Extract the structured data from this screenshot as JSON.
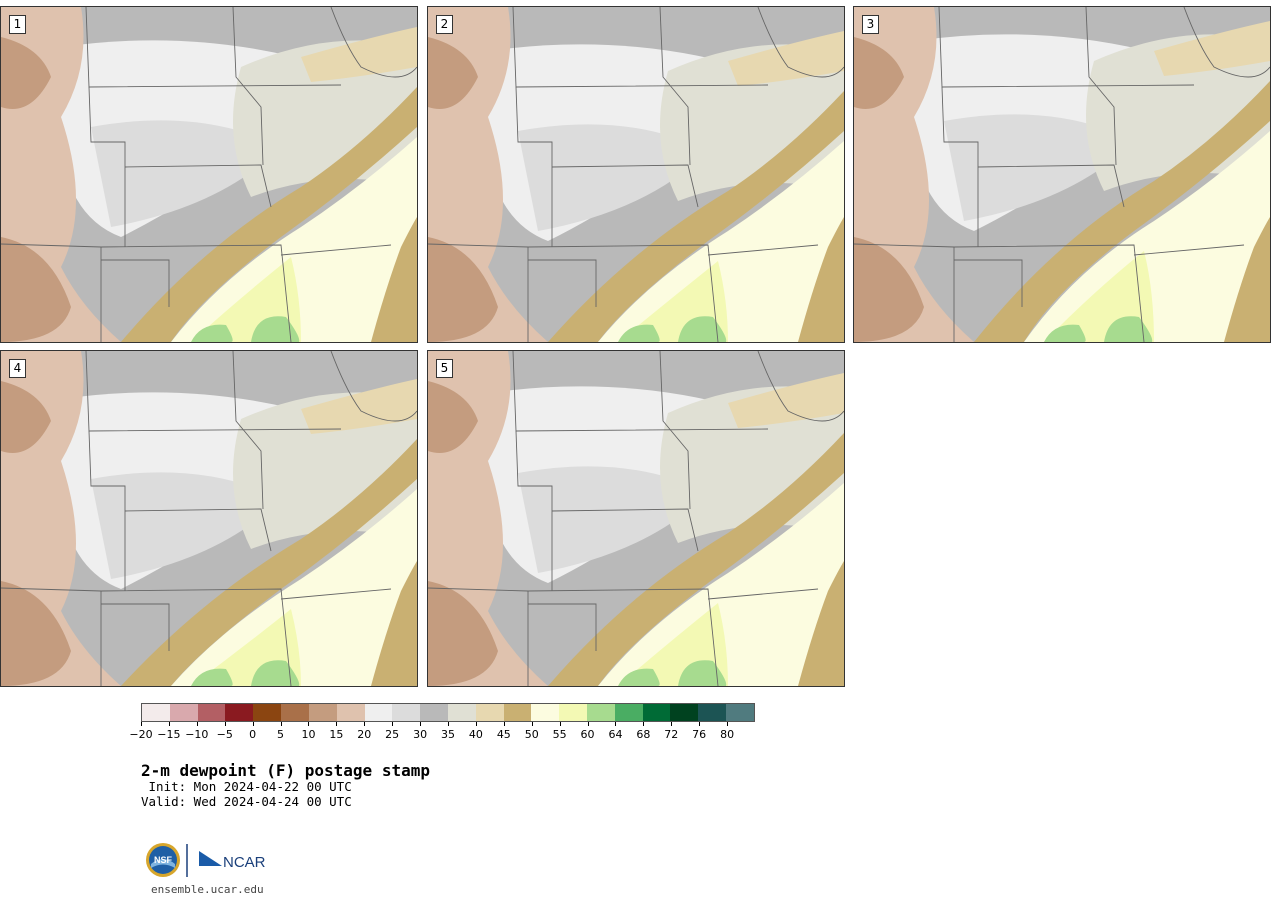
{
  "panels": [
    {
      "label": "1"
    },
    {
      "label": "2"
    },
    {
      "label": "3"
    },
    {
      "label": "4"
    },
    {
      "label": "5"
    }
  ],
  "colorbar": {
    "colors": [
      "#f3ebeb",
      "#d9a9ad",
      "#b35f64",
      "#8a1a20",
      "#8b4511",
      "#a97049",
      "#c49c7f",
      "#dfc2ae",
      "#efefef",
      "#dcdcdc",
      "#b9b9b9",
      "#e0e0d4",
      "#e7d8b0",
      "#c9b072",
      "#fcfce0",
      "#f3f9b4",
      "#a7db8f",
      "#4aad63",
      "#006b36",
      "#00421f",
      "#1c5454",
      "#507b7f"
    ],
    "tick_labels": [
      "−20",
      "−15",
      "−10",
      "−5",
      "0",
      "5",
      "10",
      "15",
      "20",
      "25",
      "30",
      "35",
      "40",
      "45",
      "50",
      "55",
      "60",
      "64",
      "68",
      "72",
      "76",
      "80"
    ]
  },
  "title": "2-m dewpoint (F) postage stamp",
  "init": " Init: Mon 2024-04-22 00 UTC",
  "valid": "Valid: Wed 2024-04-24 00 UTC",
  "logo": {
    "nsf": "NSF",
    "ncar": "NCAR"
  },
  "site": "ensemble.ucar.edu"
}
